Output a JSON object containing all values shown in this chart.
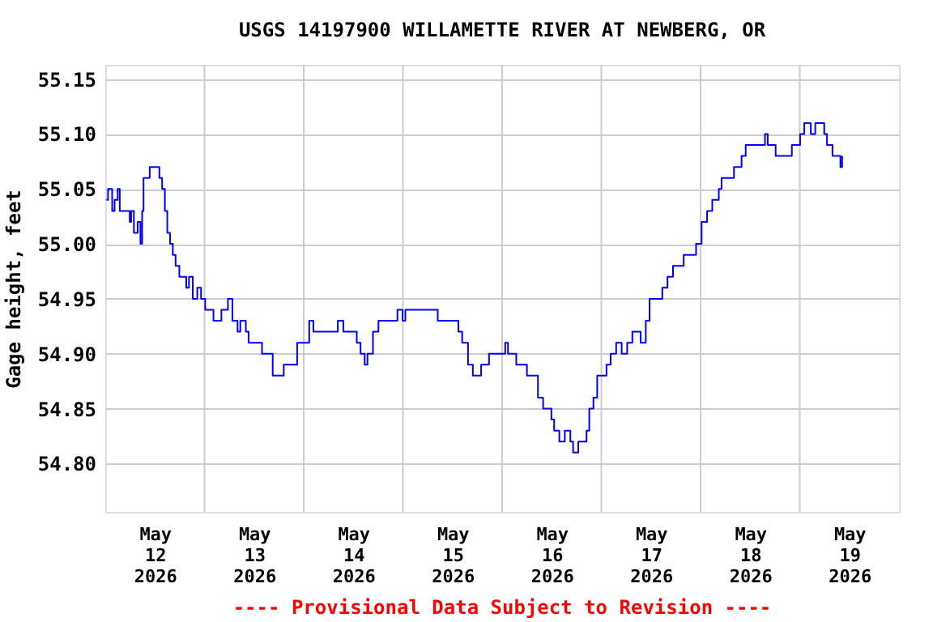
{
  "chart_data": {
    "type": "step",
    "title": "USGS 14197900 WILLAMETTE RIVER AT NEWBERG, OR",
    "ylabel": "Gage height, feet",
    "annotations": [
      "---- Provisional Data Subject to Revision ----"
    ],
    "xlim": [
      "2026-05-12T00:00",
      "2026-05-20T00:00"
    ],
    "xticks": [
      {
        "value": "2026-05-12T12:00",
        "label": "May 12 2026"
      },
      {
        "value": "2026-05-13T12:00",
        "label": "May 13 2026"
      },
      {
        "value": "2026-05-14T12:00",
        "label": "May 14 2026"
      },
      {
        "value": "2026-05-15T12:00",
        "label": "May 15 2026"
      },
      {
        "value": "2026-05-16T12:00",
        "label": "May 16 2026"
      },
      {
        "value": "2026-05-17T12:00",
        "label": "May 17 2026"
      },
      {
        "value": "2026-05-18T12:00",
        "label": "May 18 2026"
      },
      {
        "value": "2026-05-19T12:00",
        "label": "May 19 2026"
      },
      {
        "value": "2026-05-13T00:00",
        "label": null
      },
      {
        "value": "2026-05-14T00:00",
        "label": null
      },
      {
        "value": "2026-05-15T00:00",
        "label": null
      },
      {
        "value": "2026-05-16T00:00",
        "label": null
      },
      {
        "value": "2026-05-17T00:00",
        "label": null
      },
      {
        "value": "2026-05-18T00:00",
        "label": null
      },
      {
        "value": "2026-05-19T00:00",
        "label": null
      }
    ],
    "ylim": [
      54.756,
      55.163
    ],
    "yticks": [
      {
        "value": 54.8,
        "label": "54.80"
      },
      {
        "value": 54.85,
        "label": "54.85"
      },
      {
        "value": 54.9,
        "label": "54.90"
      },
      {
        "value": 54.95,
        "label": "54.95"
      },
      {
        "value": 55.0,
        "label": "55.00"
      },
      {
        "value": 55.05,
        "label": "55.05"
      },
      {
        "value": 55.1,
        "label": "55.10"
      },
      {
        "value": 55.15,
        "label": "55.15"
      }
    ],
    "grid": true,
    "series": [
      {
        "color": "#0000ff",
        "x": [
          "2026-05-12T00:15",
          "2026-05-12T00:40",
          "2026-05-12T01:20",
          "2026-05-12T01:40",
          "2026-05-12T02:15",
          "2026-05-12T03:00",
          "2026-05-12T03:30",
          "2026-05-12T05:15",
          "2026-05-12T05:55",
          "2026-05-12T06:15",
          "2026-05-12T06:55",
          "2026-05-12T07:50",
          "2026-05-12T08:30",
          "2026-05-12T08:55",
          "2026-05-12T09:15",
          "2026-05-12T09:50",
          "2026-05-12T10:45",
          "2026-05-12T12:25",
          "2026-05-12T13:05",
          "2026-05-12T13:45",
          "2026-05-12T14:25",
          "2026-05-12T15:00",
          "2026-05-12T15:40",
          "2026-05-12T16:20",
          "2026-05-12T17:00",
          "2026-05-12T17:55",
          "2026-05-12T19:35",
          "2026-05-12T20:15",
          "2026-05-12T21:10",
          "2026-05-12T22:15",
          "2026-05-12T23:10",
          "2026-05-13T00:10",
          "2026-05-13T01:30",
          "2026-05-13T02:10",
          "2026-05-13T03:30",
          "2026-05-13T04:05",
          "2026-05-13T05:40",
          "2026-05-13T06:45",
          "2026-05-13T08:00",
          "2026-05-13T08:40",
          "2026-05-13T10:00",
          "2026-05-13T10:40",
          "2026-05-13T13:15",
          "2026-05-13T13:55",
          "2026-05-13T15:15",
          "2026-05-13T16:30",
          "2026-05-13T17:50",
          "2026-05-13T19:10",
          "2026-05-13T19:50",
          "2026-05-13T21:05",
          "2026-05-13T22:25",
          "2026-05-14T00:25",
          "2026-05-14T01:20",
          "2026-05-14T02:20",
          "2026-05-14T04:55",
          "2026-05-14T08:15",
          "2026-05-14T09:35",
          "2026-05-14T11:30",
          "2026-05-14T12:50",
          "2026-05-14T13:45",
          "2026-05-14T14:45",
          "2026-05-14T15:25",
          "2026-05-14T16:45",
          "2026-05-14T18:05",
          "2026-05-14T20:40",
          "2026-05-14T22:40",
          "2026-05-14T23:55",
          "2026-05-15T00:35",
          "2026-05-15T07:10",
          "2026-05-15T08:25",
          "2026-05-15T12:20",
          "2026-05-15T13:25",
          "2026-05-15T14:20",
          "2026-05-15T15:15",
          "2026-05-15T15:45",
          "2026-05-15T16:55",
          "2026-05-15T18:15",
          "2026-05-15T18:55",
          "2026-05-15T20:15",
          "2026-05-15T20:50",
          "2026-05-16T00:10",
          "2026-05-16T00:45",
          "2026-05-16T01:25",
          "2026-05-16T03:25",
          "2026-05-16T05:20",
          "2026-05-16T06:00",
          "2026-05-16T08:00",
          "2026-05-16T08:40",
          "2026-05-16T09:55",
          "2026-05-16T11:15",
          "2026-05-16T11:55",
          "2026-05-16T12:35",
          "2026-05-16T13:50",
          "2026-05-16T15:10",
          "2026-05-16T16:30",
          "2026-05-16T17:10",
          "2026-05-16T18:25",
          "2026-05-16T20:25",
          "2026-05-16T21:05",
          "2026-05-16T22:05",
          "2026-05-16T23:00",
          "2026-05-17T00:20",
          "2026-05-17T01:15",
          "2026-05-17T02:15",
          "2026-05-17T03:35",
          "2026-05-17T04:55",
          "2026-05-17T06:15",
          "2026-05-17T07:30",
          "2026-05-17T09:30",
          "2026-05-17T10:45",
          "2026-05-17T11:40",
          "2026-05-17T13:25",
          "2026-05-17T14:45",
          "2026-05-17T16:00",
          "2026-05-17T17:20",
          "2026-05-17T18:40",
          "2026-05-17T19:55",
          "2026-05-17T21:55",
          "2026-05-17T22:55",
          "2026-05-18T00:15",
          "2026-05-18T01:35",
          "2026-05-18T02:50",
          "2026-05-18T04:25",
          "2026-05-18T05:05",
          "2026-05-18T06:25",
          "2026-05-18T08:05",
          "2026-05-18T09:55",
          "2026-05-18T10:55",
          "2026-05-18T12:15",
          "2026-05-18T14:15",
          "2026-05-18T15:35",
          "2026-05-18T16:15",
          "2026-05-18T18:10",
          "2026-05-18T20:50",
          "2026-05-18T22:05",
          "2026-05-18T23:25",
          "2026-05-19T00:05",
          "2026-05-19T01:05",
          "2026-05-19T02:40",
          "2026-05-19T03:45",
          "2026-05-19T05:15",
          "2026-05-19T05:55",
          "2026-05-19T06:35",
          "2026-05-19T07:55",
          "2026-05-19T09:15",
          "2026-05-19T09:50",
          "2026-05-19T10:15"
        ],
        "values": [
          55.04,
          55.05,
          55.05,
          55.03,
          55.04,
          55.05,
          55.03,
          55.03,
          55.02,
          55.03,
          55.01,
          55.02,
          55.0,
          55.03,
          55.06,
          55.06,
          55.07,
          55.07,
          55.06,
          55.05,
          55.03,
          55.01,
          55.0,
          54.99,
          54.98,
          54.97,
          54.96,
          54.97,
          54.95,
          54.96,
          54.95,
          54.94,
          54.94,
          54.93,
          54.93,
          54.94,
          54.95,
          54.93,
          54.92,
          54.93,
          54.92,
          54.91,
          54.91,
          54.9,
          54.9,
          54.88,
          54.88,
          54.89,
          54.89,
          54.89,
          54.91,
          54.91,
          54.93,
          54.92,
          54.92,
          54.93,
          54.92,
          54.92,
          54.91,
          54.9,
          54.89,
          54.9,
          54.92,
          54.93,
          54.93,
          54.94,
          54.93,
          54.94,
          54.94,
          54.93,
          54.93,
          54.92,
          54.91,
          54.91,
          54.89,
          54.88,
          54.88,
          54.89,
          54.89,
          54.9,
          54.9,
          54.91,
          54.9,
          54.89,
          54.89,
          54.88,
          54.88,
          54.86,
          54.85,
          54.85,
          54.84,
          54.83,
          54.82,
          54.83,
          54.82,
          54.81,
          54.82,
          54.83,
          54.85,
          54.86,
          54.88,
          54.88,
          54.89,
          54.9,
          54.91,
          54.9,
          54.91,
          54.92,
          54.91,
          54.93,
          54.95,
          54.95,
          54.96,
          54.97,
          54.98,
          54.98,
          54.99,
          54.99,
          55.0,
          55.02,
          55.03,
          55.04,
          55.05,
          55.06,
          55.06,
          55.07,
          55.08,
          55.09,
          55.09,
          55.09,
          55.1,
          55.09,
          55.08,
          55.08,
          55.09,
          55.09,
          55.1,
          55.11,
          55.1,
          55.11,
          55.11,
          55.1,
          55.09,
          55.08,
          55.08,
          55.07,
          55.08
        ]
      }
    ]
  }
}
